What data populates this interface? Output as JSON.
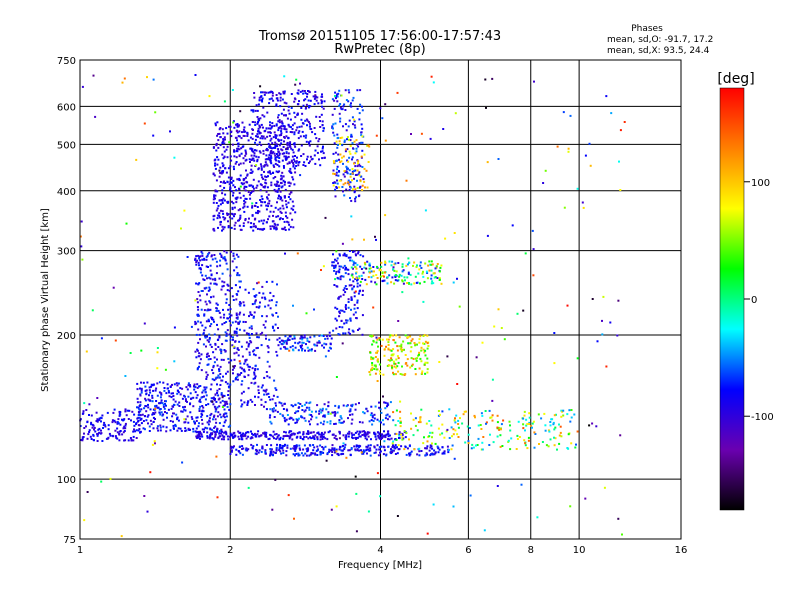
{
  "chart_data": {
    "type": "scatter",
    "title": "Tromsø 20151105 17:56:00-17:57:43",
    "subtitle": "RwPretec (8p)",
    "xlabel": "Frequency [MHz]",
    "ylabel": "Stationary phase Virtual Height [km]",
    "x_scale": "log",
    "y_scale": "log",
    "xlim": [
      1,
      16
    ],
    "ylim": [
      75,
      750
    ],
    "x_ticks": [
      1,
      2,
      4,
      6,
      8,
      10,
      16
    ],
    "y_ticks": [
      75,
      100,
      200,
      300,
      400,
      500,
      600,
      750
    ],
    "grid": true,
    "stats": {
      "heading": "Phases",
      "line_o": "mean, sd,O: -91.7, 17.2",
      "line_x": "mean, sd,X:  93.5, 24.4"
    },
    "colorbar": {
      "label": "[deg]",
      "range": [
        -180,
        180
      ],
      "ticks": [
        100,
        0,
        -100
      ],
      "colors": [
        "#000000",
        "#6a00b0",
        "#0000ff",
        "#00ffff",
        "#00ff00",
        "#ffff00",
        "#ff8000",
        "#ff0000"
      ]
    },
    "clusters": [
      {
        "f": [
          1.85,
          2.7
        ],
        "h": [
          330,
          560
        ],
        "n": 700,
        "phase": [
          -110,
          -75
        ]
      },
      {
        "f": [
          2.2,
          3.1
        ],
        "h": [
          450,
          650
        ],
        "n": 300,
        "phase": [
          -110,
          -70
        ]
      },
      {
        "f": [
          3.2,
          3.7
        ],
        "h": [
          380,
          650
        ],
        "n": 180,
        "phase": [
          -110,
          -50
        ]
      },
      {
        "f": [
          3.2,
          3.8
        ],
        "h": [
          400,
          520
        ],
        "n": 60,
        "phase": [
          60,
          130
        ]
      },
      {
        "f": [
          1.0,
          1.3
        ],
        "h": [
          120,
          140
        ],
        "n": 140,
        "phase": [
          -110,
          -70
        ]
      },
      {
        "f": [
          1.3,
          2.0
        ],
        "h": [
          125,
          160
        ],
        "n": 400,
        "phase": [
          -110,
          -60
        ]
      },
      {
        "f": [
          1.7,
          2.1
        ],
        "h": [
          160,
          300
        ],
        "n": 350,
        "phase": [
          -110,
          -60
        ]
      },
      {
        "f": [
          2.1,
          2.5
        ],
        "h": [
          140,
          260
        ],
        "n": 180,
        "phase": [
          -110,
          -60
        ]
      },
      {
        "f": [
          2.5,
          3.2
        ],
        "h": [
          185,
          200
        ],
        "n": 90,
        "phase": [
          -110,
          -40
        ]
      },
      {
        "f": [
          3.2,
          3.7
        ],
        "h": [
          200,
          300
        ],
        "n": 150,
        "phase": [
          -110,
          -60
        ]
      },
      {
        "f": [
          3.5,
          5.3
        ],
        "h": [
          255,
          285
        ],
        "n": 160,
        "phase": [
          -110,
          120
        ]
      },
      {
        "f": [
          3.8,
          5.0
        ],
        "h": [
          165,
          200
        ],
        "n": 180,
        "phase": [
          20,
          140
        ]
      },
      {
        "f": [
          1.7,
          4.5
        ],
        "h": [
          121,
          126
        ],
        "n": 320,
        "phase": [
          -110,
          -75
        ]
      },
      {
        "f": [
          2.0,
          5.5
        ],
        "h": [
          112,
          118
        ],
        "n": 320,
        "phase": [
          -110,
          -60
        ]
      },
      {
        "f": [
          2.4,
          4.2
        ],
        "h": [
          130,
          145
        ],
        "n": 180,
        "phase": [
          -110,
          -40
        ]
      },
      {
        "f": [
          4.2,
          10.0
        ],
        "h": [
          115,
          140
        ],
        "n": 220,
        "phase": [
          -60,
          150
        ]
      },
      {
        "f": [
          1.0,
          12.5
        ],
        "h": [
          75,
          700
        ],
        "n": 260,
        "phase": [
          -180,
          180
        ]
      }
    ]
  }
}
